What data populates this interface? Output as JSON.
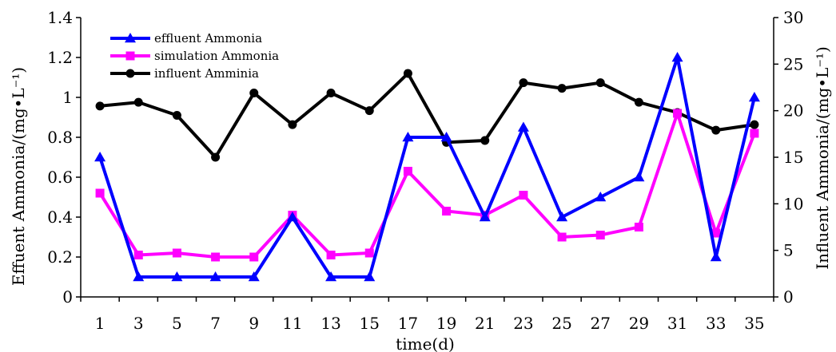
{
  "chart_data": {
    "type": "line",
    "xlabel": "time(d)",
    "ylabel": "Effuent Ammonia/(mg•L⁻¹)",
    "y2label": "Influent Ammonia/(mg•L⁻¹)",
    "x": [
      1,
      3,
      5,
      7,
      9,
      11,
      13,
      15,
      17,
      19,
      21,
      23,
      25,
      27,
      29,
      31,
      33,
      35
    ],
    "xlim": [
      0,
      36
    ],
    "ylim": [
      0,
      1.4
    ],
    "y2lim": [
      0,
      30
    ],
    "x_ticks": [
      "1",
      "3",
      "5",
      "7",
      "9",
      "11",
      "13",
      "15",
      "17",
      "19",
      "21",
      "23",
      "25",
      "27",
      "29",
      "31",
      "33",
      "35"
    ],
    "y_ticks": [
      "0",
      "0.2",
      "0.4",
      "0.6",
      "0.8",
      "1",
      "1.2",
      "1.4"
    ],
    "y2_ticks": [
      "0",
      "5",
      "10",
      "15",
      "20",
      "25",
      "30"
    ],
    "grid": false,
    "legend_position": "top-left",
    "series": [
      {
        "name": "effluent Ammonia",
        "axis": "left",
        "color": "#0000ff",
        "marker": "triangle",
        "values": [
          0.7,
          0.1,
          0.1,
          0.1,
          0.1,
          0.4,
          0.1,
          0.1,
          0.8,
          0.8,
          0.4,
          0.85,
          0.4,
          0.5,
          0.6,
          1.2,
          0.2,
          1.0
        ]
      },
      {
        "name": "simulation Ammonia",
        "axis": "left",
        "color": "#ff00ff",
        "marker": "square",
        "values": [
          0.52,
          0.21,
          0.22,
          0.2,
          0.2,
          0.41,
          0.21,
          0.22,
          0.63,
          0.43,
          0.41,
          0.51,
          0.3,
          0.31,
          0.35,
          0.92,
          0.32,
          0.82
        ]
      },
      {
        "name": "influent Amminia",
        "axis": "right",
        "color": "#000000",
        "marker": "circle",
        "values": [
          20.5,
          20.9,
          19.5,
          15.0,
          21.9,
          18.5,
          21.9,
          20.0,
          24.0,
          16.6,
          16.8,
          23.0,
          22.4,
          23.0,
          20.9,
          19.8,
          17.9,
          18.5
        ]
      }
    ]
  }
}
